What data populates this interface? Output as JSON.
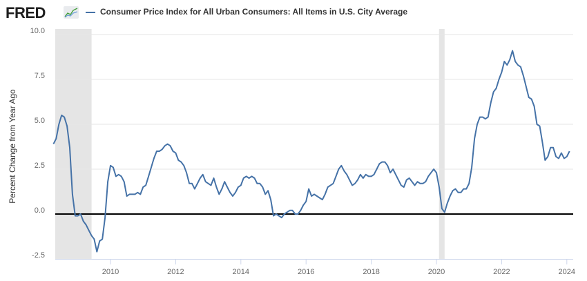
{
  "header": {
    "logo_text": "FRED",
    "logo_icon": "chart-line-icon",
    "legend_label": "Consumer Price Index for All Urban Consumers: All Items in U.S. City Average"
  },
  "colors": {
    "series": "#4572a7",
    "recession": "#e5e5e5",
    "grid": "#e6e6e6",
    "zero_line": "#000000",
    "axis": "#ccd6eb"
  },
  "chart_data": {
    "type": "line",
    "title": "Consumer Price Index for All Urban Consumers: All Items in U.S. City Average",
    "xlabel": "",
    "ylabel": "Percent Change from Year Ago",
    "ylim": [
      -2.5,
      10.0
    ],
    "xlim": [
      2008.25,
      2024.17
    ],
    "y_ticks": [
      "10.0",
      "7.5",
      "5.0",
      "2.5",
      "0.0",
      "-2.5"
    ],
    "y_tick_values": [
      10.0,
      7.5,
      5.0,
      2.5,
      0.0,
      -2.5
    ],
    "x_ticks": [
      "2010",
      "2012",
      "2014",
      "2016",
      "2018",
      "2020",
      "2022",
      "2024"
    ],
    "x_tick_values": [
      2010,
      2012,
      2014,
      2016,
      2018,
      2020,
      2022,
      2024
    ],
    "grid": true,
    "legend": "top-left",
    "zero_line": true,
    "recessions": [
      {
        "start": 2007.92,
        "end": 2009.42
      },
      {
        "start": 2020.08,
        "end": 2020.25
      }
    ],
    "series": [
      {
        "name": "Consumer Price Index for All Urban Consumers: All Items in U.S. City Average",
        "start": "2008-04",
        "frequency": "monthly",
        "values": [
          3.9,
          4.2,
          5.0,
          5.5,
          5.4,
          4.9,
          3.7,
          1.1,
          -0.1,
          -0.1,
          0.0,
          -0.4,
          -0.6,
          -0.9,
          -1.2,
          -1.4,
          -2.1,
          -1.5,
          -1.4,
          -0.2,
          1.8,
          2.7,
          2.6,
          2.1,
          2.2,
          2.1,
          1.8,
          1.0,
          1.1,
          1.1,
          1.1,
          1.2,
          1.1,
          1.5,
          1.6,
          2.1,
          2.6,
          3.1,
          3.5,
          3.5,
          3.6,
          3.8,
          3.9,
          3.8,
          3.5,
          3.4,
          3.0,
          2.9,
          2.7,
          2.3,
          1.7,
          1.7,
          1.4,
          1.7,
          2.0,
          2.2,
          1.8,
          1.7,
          1.6,
          2.0,
          1.5,
          1.1,
          1.4,
          1.8,
          1.5,
          1.2,
          1.0,
          1.2,
          1.5,
          1.6,
          2.0,
          2.1,
          2.0,
          2.1,
          2.0,
          1.7,
          1.7,
          1.5,
          1.1,
          1.3,
          0.8,
          -0.1,
          0.0,
          -0.1,
          -0.2,
          0.0,
          0.1,
          0.2,
          0.2,
          0.0,
          0.0,
          0.2,
          0.5,
          0.7,
          1.4,
          1.0,
          1.1,
          1.0,
          0.9,
          0.8,
          1.1,
          1.5,
          1.6,
          1.7,
          2.1,
          2.5,
          2.7,
          2.4,
          2.2,
          1.9,
          1.6,
          1.7,
          1.9,
          2.2,
          2.0,
          2.2,
          2.1,
          2.1,
          2.2,
          2.5,
          2.8,
          2.9,
          2.9,
          2.7,
          2.3,
          2.5,
          2.2,
          1.9,
          1.6,
          1.5,
          1.9,
          2.0,
          1.8,
          1.6,
          1.8,
          1.7,
          1.7,
          1.8,
          2.1,
          2.3,
          2.5,
          2.3,
          1.5,
          0.3,
          0.1,
          0.6,
          1.0,
          1.3,
          1.4,
          1.2,
          1.2,
          1.4,
          1.4,
          1.7,
          2.6,
          4.2,
          5.0,
          5.4,
          5.4,
          5.3,
          5.4,
          6.2,
          6.8,
          7.0,
          7.5,
          7.9,
          8.5,
          8.3,
          8.6,
          9.1,
          8.5,
          8.3,
          8.2,
          7.7,
          7.1,
          6.5,
          6.4,
          6.0,
          5.0,
          4.9,
          4.0,
          3.0,
          3.2,
          3.7,
          3.7,
          3.2,
          3.1,
          3.4,
          3.1,
          3.2,
          3.5
        ]
      }
    ]
  }
}
